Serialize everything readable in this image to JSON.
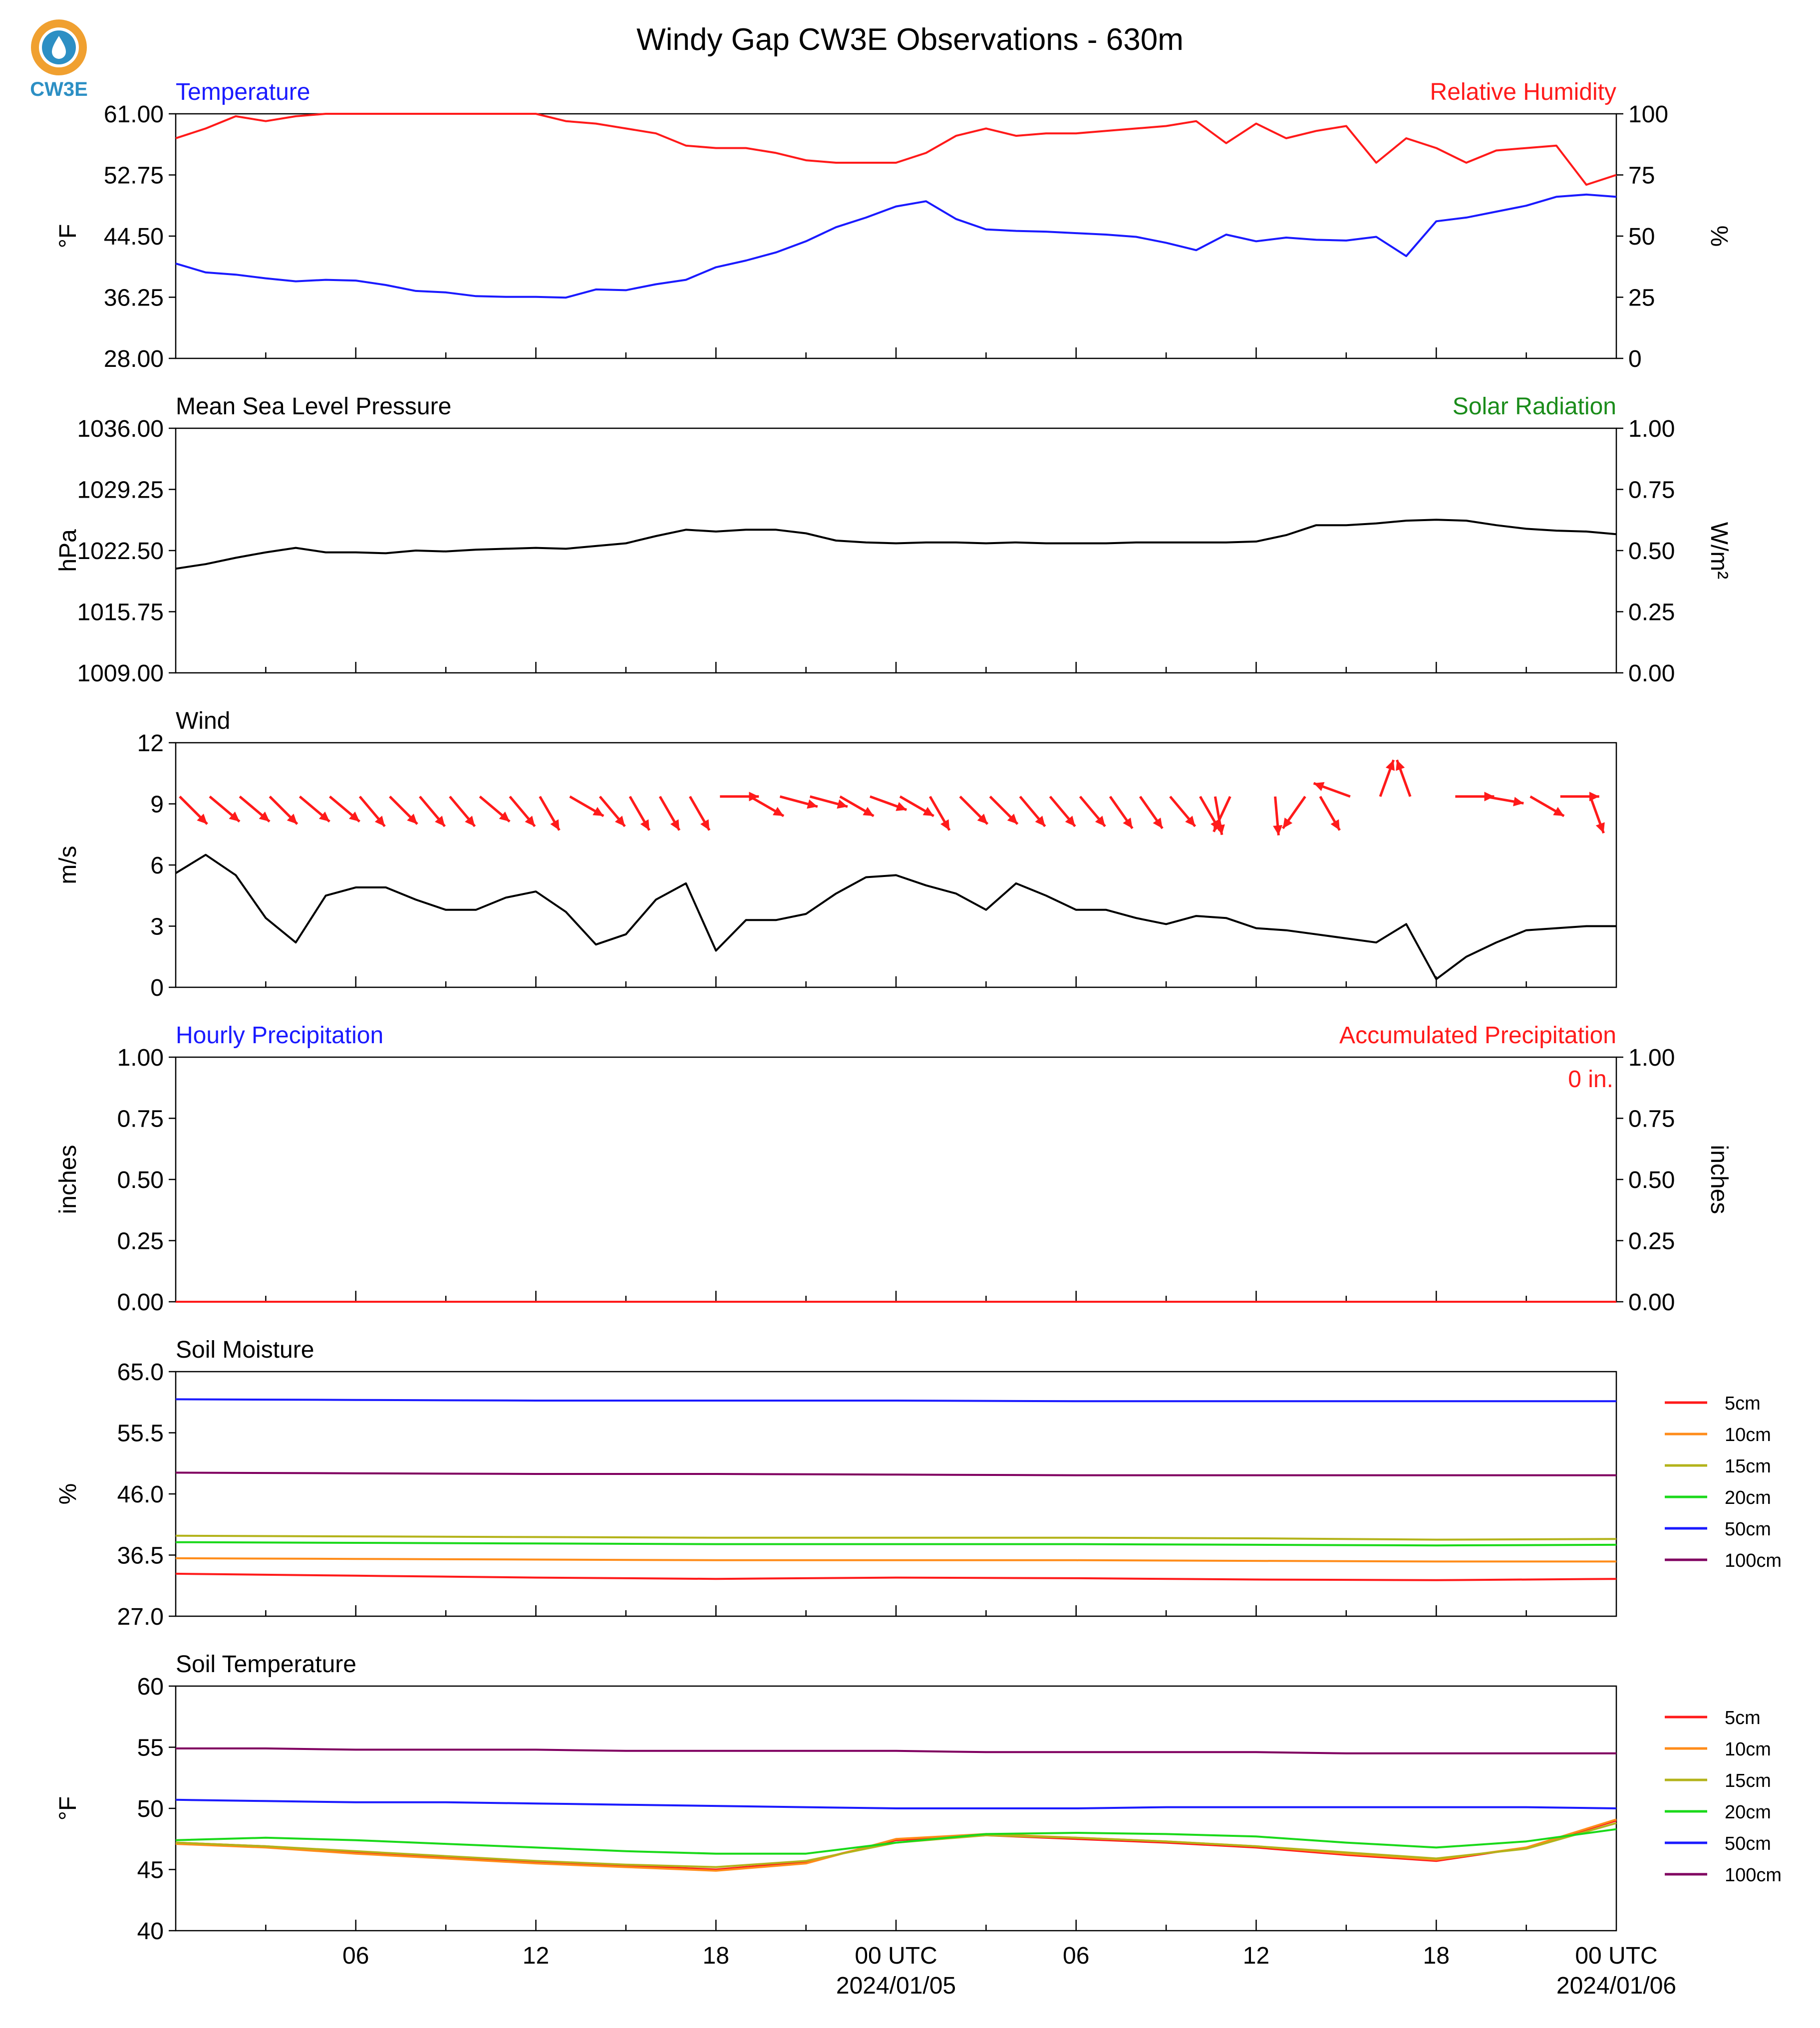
{
  "title": "Windy Gap CW3E Observations - 630m",
  "logo": {
    "text": "CW3E",
    "colors": {
      "ring": "#f0a030",
      "drop": "#2c8fc4",
      "text": "#2c8fc4"
    }
  },
  "colors": {
    "red": "#ff1a1a",
    "blue": "#1a1aff",
    "black": "#000000",
    "green": "#1a8c1a"
  },
  "x_axis": {
    "tick_labels": [
      "06",
      "12",
      "18",
      "00 UTC",
      "06",
      "12",
      "18",
      "00 UTC"
    ],
    "date_labels": [
      "2024/01/05",
      "2024/01/06"
    ]
  },
  "chart_data": [
    {
      "type": "line",
      "title": "Temperature",
      "title_right": "Relative Humidity",
      "ylabel": "°F",
      "ylabel_right": "%",
      "ylim": [
        28,
        61
      ],
      "ylim_right": [
        0,
        100
      ],
      "yticks": [
        "61.00",
        "52.75",
        "44.50",
        "36.25",
        "28.00"
      ],
      "yticks_right": [
        "100",
        "75",
        "50",
        "25",
        "0"
      ],
      "x_hours": [
        0,
        1,
        2,
        3,
        4,
        5,
        6,
        7,
        8,
        9,
        10,
        11,
        12,
        13,
        14,
        15,
        16,
        17,
        18,
        19,
        20,
        21,
        22,
        23,
        24,
        25,
        26,
        27,
        28,
        29,
        30,
        31,
        32,
        33,
        34,
        35,
        36,
        37,
        38,
        39,
        40,
        41,
        42,
        43,
        44,
        45,
        46,
        47,
        48
      ],
      "series": [
        {
          "name": "Temperature",
          "axis": "left",
          "color": "#1a1aff",
          "values": [
            40.8,
            39.6,
            39.3,
            38.8,
            38.4,
            38.6,
            38.5,
            37.9,
            37.1,
            36.9,
            36.4,
            36.3,
            36.3,
            36.2,
            37.3,
            37.2,
            38.0,
            38.6,
            40.3,
            41.2,
            42.3,
            43.8,
            45.7,
            47.0,
            48.5,
            49.2,
            46.8,
            45.4,
            45.2,
            45.1,
            44.9,
            44.7,
            44.4,
            43.6,
            42.6,
            44.7,
            43.8,
            44.3,
            44.0,
            43.9,
            44.4,
            41.8,
            46.5,
            47.0,
            47.8,
            48.6,
            49.8,
            50.1,
            49.8
          ]
        },
        {
          "name": "Relative Humidity",
          "axis": "right",
          "color": "#ff1a1a",
          "values": [
            90,
            94,
            99,
            97,
            99,
            100,
            100,
            100,
            100,
            100,
            100,
            100,
            100,
            97,
            96,
            94,
            92,
            87,
            86,
            86,
            84,
            81,
            80,
            80,
            80,
            84,
            91,
            94,
            91,
            92,
            92,
            93,
            94,
            95,
            97,
            88,
            96,
            90,
            93,
            95,
            80,
            90,
            86,
            80,
            85,
            86,
            87,
            71,
            75
          ]
        }
      ]
    },
    {
      "type": "line",
      "title": "Mean Sea Level Pressure",
      "title_right": "Solar Radiation",
      "ylabel": "hPa",
      "ylabel_right": "W/m²",
      "ylim": [
        1009,
        1036
      ],
      "ylim_right": [
        0,
        1
      ],
      "yticks": [
        "1036.00",
        "1029.25",
        "1022.50",
        "1015.75",
        "1009.00"
      ],
      "yticks_right": [
        "1.00",
        "0.75",
        "0.50",
        "0.25",
        "0.00"
      ],
      "x_hours": [
        0,
        1,
        2,
        3,
        4,
        5,
        6,
        7,
        8,
        9,
        10,
        11,
        12,
        13,
        14,
        15,
        16,
        17,
        18,
        19,
        20,
        21,
        22,
        23,
        24,
        25,
        26,
        27,
        28,
        29,
        30,
        31,
        32,
        33,
        34,
        35,
        36,
        37,
        38,
        39,
        40,
        41,
        42,
        43,
        44,
        45,
        46,
        47,
        48
      ],
      "series": [
        {
          "name": "Pressure",
          "axis": "left",
          "color": "#000000",
          "values": [
            1020.5,
            1021.0,
            1021.7,
            1022.3,
            1022.8,
            1022.3,
            1022.3,
            1022.2,
            1022.5,
            1022.4,
            1022.6,
            1022.7,
            1022.8,
            1022.7,
            1023.0,
            1023.3,
            1024.1,
            1024.8,
            1024.6,
            1024.8,
            1024.8,
            1024.4,
            1023.6,
            1023.4,
            1023.3,
            1023.4,
            1023.4,
            1023.3,
            1023.4,
            1023.3,
            1023.3,
            1023.3,
            1023.4,
            1023.4,
            1023.4,
            1023.4,
            1023.5,
            1024.2,
            1025.3,
            1025.3,
            1025.5,
            1025.8,
            1025.9,
            1025.8,
            1025.3,
            1024.9,
            1024.7,
            1024.6,
            1024.3
          ]
        }
      ]
    },
    {
      "type": "line",
      "title": "Wind",
      "ylabel": "m/s",
      "ylim": [
        0,
        12
      ],
      "yticks": [
        "12",
        "9",
        "6",
        "3",
        "0"
      ],
      "x_hours": [
        0,
        1,
        2,
        3,
        4,
        5,
        6,
        7,
        8,
        9,
        10,
        11,
        12,
        13,
        14,
        15,
        16,
        17,
        18,
        19,
        20,
        21,
        22,
        23,
        24,
        25,
        26,
        27,
        28,
        29,
        30,
        31,
        32,
        33,
        34,
        35,
        36,
        37,
        38,
        39,
        40,
        41,
        42,
        43,
        44,
        45,
        46,
        47,
        48
      ],
      "series": [
        {
          "name": "Wind Speed",
          "axis": "left",
          "color": "#000000",
          "values": [
            5.6,
            6.5,
            5.5,
            3.4,
            2.2,
            4.5,
            4.9,
            4.9,
            4.3,
            3.8,
            3.8,
            4.4,
            4.7,
            3.7,
            2.1,
            2.6,
            4.3,
            5.1,
            1.8,
            3.3,
            3.3,
            3.6,
            4.6,
            5.4,
            5.5,
            5.0,
            4.6,
            3.8,
            5.1,
            4.5,
            3.8,
            3.8,
            3.4,
            3.1,
            3.5,
            3.4,
            2.9,
            2.8,
            2.6,
            2.4,
            2.2,
            3.1,
            0.4,
            1.5,
            2.2,
            2.8,
            2.9,
            3.0,
            3.0
          ]
        }
      ],
      "wind_arrows": {
        "color": "#ff1a1a",
        "hours": [
          0.0,
          1.0,
          2.0,
          3.0,
          4.0,
          5.0,
          6.0,
          7.0,
          8.0,
          9.0,
          10.0,
          11.0,
          12.0,
          13.0,
          14.0,
          15.0,
          16.0,
          17.0,
          18.0,
          19.0,
          20.0,
          21.0,
          22.0,
          23.0,
          24.0,
          25.0,
          26.0,
          27.0,
          28.0,
          29.0,
          30.0,
          31.0,
          32.0,
          33.0,
          34.0,
          34.5,
          35.0,
          36.5,
          37.5,
          38.0,
          39.0,
          40.0,
          41.0,
          42.5,
          43.5,
          45.0,
          46.0,
          47.0
        ],
        "direction_deg": [
          315,
          310,
          310,
          315,
          310,
          310,
          320,
          315,
          320,
          320,
          310,
          320,
          330,
          300,
          320,
          330,
          330,
          330,
          270,
          300,
          285,
          285,
          300,
          290,
          300,
          330,
          315,
          315,
          320,
          320,
          320,
          325,
          325,
          320,
          330,
          350,
          25,
          355,
          35,
          330,
          110,
          200,
          160,
          270,
          280,
          300,
          270,
          340
        ]
      }
    },
    {
      "type": "line",
      "title": "Hourly Precipitation",
      "title_right": "Accumulated Precipitation",
      "annotation": "0 in.",
      "ylabel": "inches",
      "ylabel_right": "inches",
      "ylim": [
        0,
        1
      ],
      "ylim_right": [
        0,
        1
      ],
      "yticks": [
        "1.00",
        "0.75",
        "0.50",
        "0.25",
        "0.00"
      ],
      "yticks_right": [
        "1.00",
        "0.75",
        "0.50",
        "0.25",
        "0.00"
      ],
      "x_hours": [
        0,
        48
      ],
      "series": [
        {
          "name": "Hourly Precipitation",
          "axis": "left",
          "color": "#1a1aff",
          "values": [
            0,
            0
          ]
        },
        {
          "name": "Accumulated Precipitation",
          "axis": "right",
          "color": "#ff1a1a",
          "values": [
            0,
            0
          ]
        }
      ]
    },
    {
      "type": "line",
      "title": "Soil Moisture",
      "ylabel": "%",
      "ylim": [
        27,
        65
      ],
      "yticks": [
        "65.0",
        "55.5",
        "46.0",
        "36.5",
        "27.0"
      ],
      "legend": "right",
      "x_hours": [
        0,
        6,
        12,
        18,
        24,
        30,
        36,
        42,
        48
      ],
      "series": [
        {
          "name": "5cm",
          "color": "#ff1a1a",
          "values": [
            33.6,
            33.3,
            33.0,
            32.8,
            33.0,
            32.9,
            32.7,
            32.6,
            32.8
          ]
        },
        {
          "name": "10cm",
          "color": "#ff8c1a",
          "values": [
            36.0,
            35.9,
            35.8,
            35.7,
            35.7,
            35.7,
            35.6,
            35.5,
            35.5
          ]
        },
        {
          "name": "15cm",
          "color": "#b3b31a",
          "values": [
            39.5,
            39.4,
            39.3,
            39.2,
            39.2,
            39.2,
            39.1,
            38.9,
            39.0
          ]
        },
        {
          "name": "20cm",
          "color": "#1ad91a",
          "values": [
            38.5,
            38.4,
            38.3,
            38.2,
            38.2,
            38.2,
            38.1,
            38.0,
            38.1
          ]
        },
        {
          "name": "50cm",
          "color": "#1a1aff",
          "values": [
            60.7,
            60.6,
            60.5,
            60.5,
            60.5,
            60.4,
            60.4,
            60.4,
            60.4
          ]
        },
        {
          "name": "100cm",
          "color": "#800060",
          "values": [
            49.3,
            49.2,
            49.1,
            49.1,
            49.0,
            48.9,
            48.9,
            48.9,
            48.9
          ]
        }
      ]
    },
    {
      "type": "line",
      "title": "Soil Temperature",
      "ylabel": "°F",
      "ylim": [
        40,
        60
      ],
      "yticks": [
        "60",
        "55",
        "50",
        "45",
        "40"
      ],
      "legend": "right",
      "x_hours": [
        0,
        3,
        6,
        9,
        12,
        15,
        18,
        21,
        24,
        27,
        30,
        33,
        36,
        39,
        42,
        45,
        48
      ],
      "series": [
        {
          "name": "5cm",
          "color": "#ff1a1a",
          "values": [
            47.2,
            46.9,
            46.4,
            46.0,
            45.6,
            45.3,
            45.0,
            45.6,
            47.4,
            47.8,
            47.5,
            47.2,
            46.8,
            46.2,
            45.7,
            46.8,
            49.0
          ]
        },
        {
          "name": "10cm",
          "color": "#ff8c1a",
          "values": [
            47.1,
            46.8,
            46.3,
            45.9,
            45.5,
            45.2,
            44.9,
            45.5,
            47.5,
            47.9,
            47.6,
            47.3,
            46.9,
            46.3,
            45.8,
            46.8,
            49.1
          ]
        },
        {
          "name": "15cm",
          "color": "#b3b31a",
          "values": [
            47.2,
            46.9,
            46.5,
            46.1,
            45.7,
            45.4,
            45.2,
            45.7,
            47.2,
            47.8,
            47.6,
            47.3,
            46.9,
            46.4,
            45.9,
            46.7,
            48.8
          ]
        },
        {
          "name": "20cm",
          "color": "#1ad91a",
          "values": [
            47.4,
            47.6,
            47.4,
            47.1,
            46.8,
            46.5,
            46.3,
            46.3,
            47.2,
            47.9,
            48.0,
            47.9,
            47.7,
            47.2,
            46.8,
            47.3,
            48.3
          ]
        },
        {
          "name": "50cm",
          "color": "#1a1aff",
          "values": [
            50.7,
            50.6,
            50.5,
            50.5,
            50.4,
            50.3,
            50.2,
            50.1,
            50.0,
            50.0,
            50.0,
            50.1,
            50.1,
            50.1,
            50.1,
            50.1,
            50.0
          ]
        },
        {
          "name": "100cm",
          "color": "#800060",
          "values": [
            54.9,
            54.9,
            54.8,
            54.8,
            54.8,
            54.7,
            54.7,
            54.7,
            54.7,
            54.6,
            54.6,
            54.6,
            54.6,
            54.5,
            54.5,
            54.5,
            54.5
          ]
        }
      ]
    }
  ]
}
